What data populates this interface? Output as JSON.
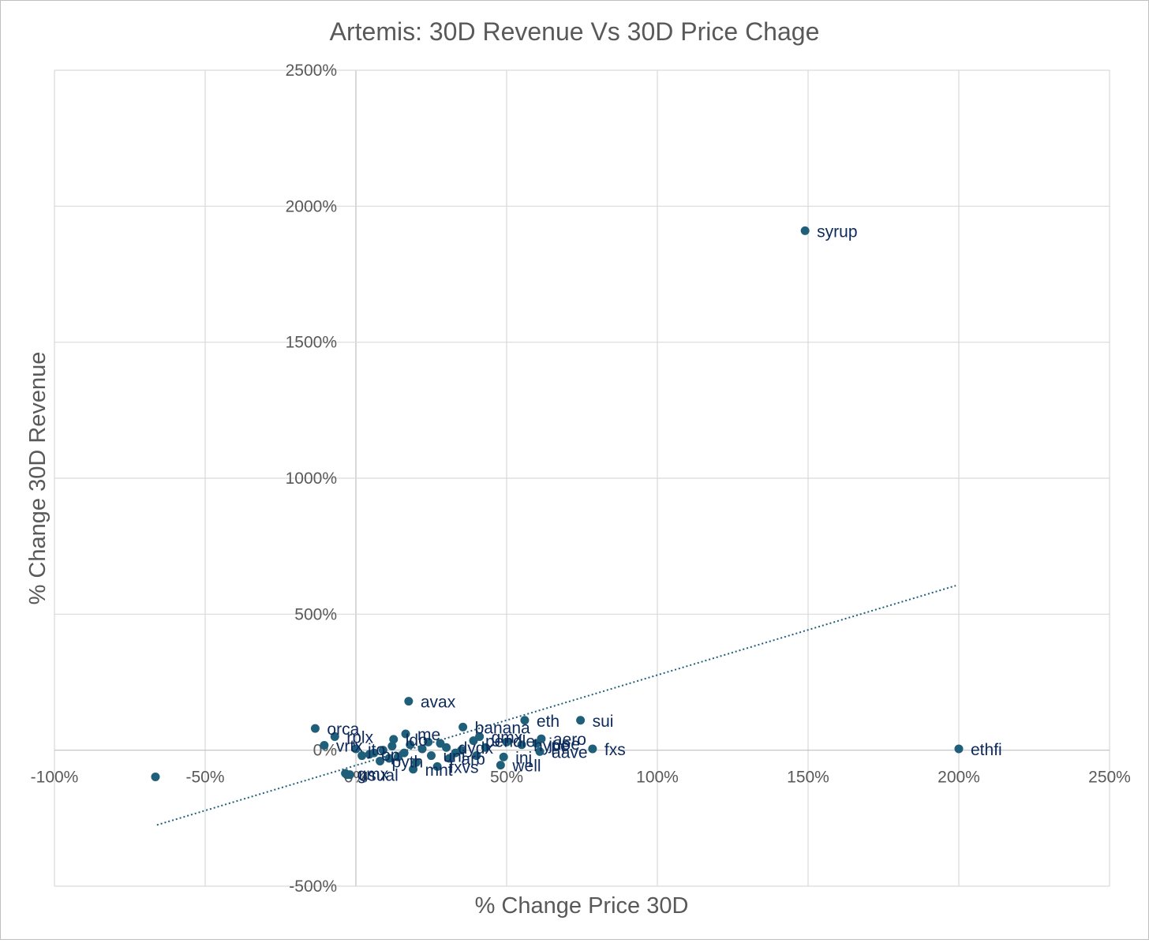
{
  "chart_data": {
    "type": "scatter",
    "title": "Artemis: 30D Revenue Vs 30D Price Chage",
    "xlabel": "% Change Price 30D",
    "ylabel": "% Change 30D Revenue",
    "xlim": [
      -1.0,
      2.5
    ],
    "ylim": [
      -5.0,
      25.0
    ],
    "x_ticks": [
      {
        "value": -1.0,
        "label": "-100%"
      },
      {
        "value": -0.5,
        "label": "-50%"
      },
      {
        "value": 0.0,
        "label": "0%"
      },
      {
        "value": 0.5,
        "label": "50%"
      },
      {
        "value": 1.0,
        "label": "100%"
      },
      {
        "value": 1.5,
        "label": "150%"
      },
      {
        "value": 2.0,
        "label": "200%"
      },
      {
        "value": 2.5,
        "label": "250%"
      }
    ],
    "y_ticks": [
      {
        "value": -5.0,
        "label": "-500%"
      },
      {
        "value": 0.0,
        "label": "0%"
      },
      {
        "value": 5.0,
        "label": "500%"
      },
      {
        "value": 10.0,
        "label": "1000%"
      },
      {
        "value": 15.0,
        "label": "1500%"
      },
      {
        "value": 20.0,
        "label": "2000%"
      },
      {
        "value": 25.0,
        "label": "2500%"
      }
    ],
    "grid": true,
    "colors": {
      "marker": "#1f5f7a",
      "label": "#0c2a5c",
      "trendline": "#1f5f7a",
      "grid": "#d9d9d9",
      "axis": "#bfbfbf",
      "text": "#595959"
    },
    "points": [
      {
        "x": 1.49,
        "y": 19.1,
        "label": "syrup"
      },
      {
        "x": 2.0,
        "y": 0.05,
        "label": "ethfi"
      },
      {
        "x": 0.175,
        "y": 1.8,
        "label": "avax"
      },
      {
        "x": 0.745,
        "y": 1.1,
        "label": "sui"
      },
      {
        "x": 0.56,
        "y": 1.1,
        "label": "eth"
      },
      {
        "x": -0.135,
        "y": 0.8,
        "label": "orca"
      },
      {
        "x": 0.355,
        "y": 0.85,
        "label": "banana"
      },
      {
        "x": 0.165,
        "y": 0.6,
        "label": "me"
      },
      {
        "x": -0.07,
        "y": 0.5,
        "label": "rplx"
      },
      {
        "x": 0.125,
        "y": 0.4,
        "label": "ldo"
      },
      {
        "x": 0.615,
        "y": 0.42,
        "label": "aero"
      },
      {
        "x": -0.105,
        "y": 0.18,
        "label": "vrtx"
      },
      {
        "x": 0.55,
        "y": 0.2,
        "label": "hype"
      },
      {
        "x": 0.785,
        "y": 0.05,
        "label": "fxs"
      },
      {
        "x": 0.61,
        "y": -0.05,
        "label": "aave"
      },
      {
        "x": 0.6,
        "y": 0.25,
        "label": "jupe"
      },
      {
        "x": 0.39,
        "y": 0.35,
        "label": "pendle"
      },
      {
        "x": 0.41,
        "y": 0.5,
        "label": "gmx"
      },
      {
        "x": 0.3,
        "y": 0.1,
        "label": "dydx"
      },
      {
        "x": 0.49,
        "y": -0.25,
        "label": "inj"
      },
      {
        "x": 0.48,
        "y": -0.55,
        "label": "well"
      },
      {
        "x": 0.31,
        "y": -0.3,
        "label": "arb"
      },
      {
        "x": 0.27,
        "y": -0.6,
        "label": "fxvs"
      },
      {
        "x": 0.19,
        "y": -0.7,
        "label": "mnt"
      },
      {
        "x": 0.08,
        "y": -0.4,
        "label": "pyth"
      },
      {
        "x": 0.045,
        "y": -0.15,
        "label": "op"
      },
      {
        "x": 0.0,
        "y": 0.05,
        "label": "jto"
      },
      {
        "x": 0.25,
        "y": -0.2,
        "label": "uni"
      },
      {
        "x": -0.035,
        "y": -0.85,
        "label": "gmx"
      },
      {
        "x": -0.03,
        "y": -0.9,
        "label": "usual"
      },
      {
        "x": -0.665,
        "y": -0.98,
        "label": ""
      },
      {
        "x": 0.12,
        "y": 0.15,
        "label": ""
      },
      {
        "x": 0.09,
        "y": 0.0,
        "label": ""
      },
      {
        "x": 0.06,
        "y": -0.1,
        "label": ""
      },
      {
        "x": 0.14,
        "y": -0.25,
        "label": ""
      },
      {
        "x": 0.22,
        "y": 0.05,
        "label": ""
      },
      {
        "x": 0.2,
        "y": -0.45,
        "label": ""
      },
      {
        "x": 0.35,
        "y": 0.0,
        "label": ""
      },
      {
        "x": 0.43,
        "y": 0.1,
        "label": ""
      },
      {
        "x": 0.28,
        "y": 0.25,
        "label": ""
      },
      {
        "x": 0.33,
        "y": -0.1,
        "label": ""
      },
      {
        "x": 0.16,
        "y": -0.1,
        "label": ""
      },
      {
        "x": 0.11,
        "y": -0.3,
        "label": ""
      },
      {
        "x": 0.24,
        "y": 0.3,
        "label": ""
      },
      {
        "x": 0.4,
        "y": -0.2,
        "label": ""
      },
      {
        "x": 0.5,
        "y": 0.3,
        "label": ""
      },
      {
        "x": 0.02,
        "y": -0.2,
        "label": ""
      },
      {
        "x": 0.18,
        "y": 0.2,
        "label": ""
      },
      {
        "x": -0.02,
        "y": -0.9,
        "label": ""
      }
    ],
    "trendline": {
      "type": "linear",
      "style": "dotted",
      "x_start": -0.66,
      "y_start": -2.75,
      "x_end": 1.99,
      "y_end": 6.05
    }
  }
}
